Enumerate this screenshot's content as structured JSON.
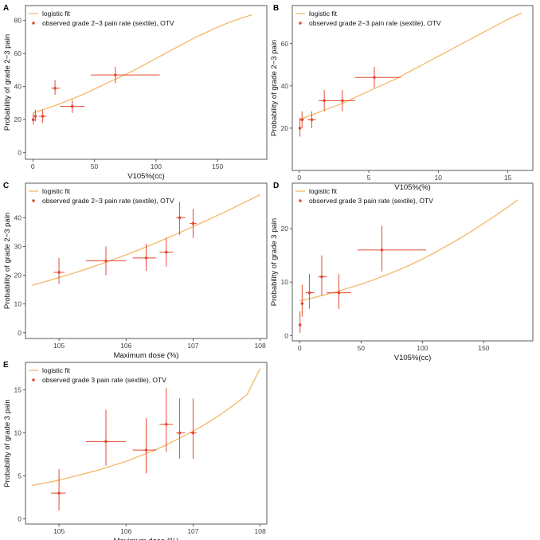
{
  "colors": {
    "fit_line": "#f5b15c",
    "observed": "#e34a33",
    "frame": "#333333",
    "tick_text": "#444444"
  },
  "chart_data": [
    {
      "panel": "A",
      "type": "scatter",
      "xlabel": "V105%(cc)",
      "ylabel": "Probability of grade 2−3 pain",
      "xlim": [
        -6,
        190
      ],
      "ylim": [
        -4,
        89
      ],
      "xticks": [
        0,
        50,
        100,
        150
      ],
      "yticks": [
        0,
        20,
        40,
        60,
        80
      ],
      "legend_position": "top-left",
      "series": [
        {
          "name": "logistic fit",
          "style": "line",
          "x": [
            0,
            10,
            20,
            30,
            40,
            50,
            60,
            70,
            80,
            90,
            100,
            110,
            120,
            130,
            140,
            150,
            160,
            170,
            178
          ],
          "y": [
            24,
            26.5,
            29,
            32,
            35,
            38.5,
            42,
            45.5,
            49,
            53,
            57,
            61,
            65,
            69,
            72.5,
            76,
            79,
            81.5,
            83.5
          ]
        },
        {
          "name": "observed grade 2−3 pain rate (sextile), OTV",
          "style": "point-errorbar",
          "points": [
            {
              "x": 0.3,
              "y": 20,
              "x_lo": 0,
              "x_hi": 0.6,
              "y_lo": 17,
              "y_hi": 24
            },
            {
              "x": 2,
              "y": 22,
              "x_lo": 1,
              "x_hi": 3,
              "y_lo": 19,
              "y_hi": 26
            },
            {
              "x": 8,
              "y": 22,
              "x_lo": 5,
              "x_hi": 11,
              "y_lo": 18,
              "y_hi": 26
            },
            {
              "x": 18,
              "y": 39,
              "x_lo": 15,
              "x_hi": 22,
              "y_lo": 35,
              "y_hi": 44
            },
            {
              "x": 32,
              "y": 28,
              "x_lo": 22,
              "x_hi": 42,
              "y_lo": 24,
              "y_hi": 32
            },
            {
              "x": 67,
              "y": 47,
              "x_lo": 47,
              "x_hi": 103,
              "y_lo": 42,
              "y_hi": 52
            }
          ]
        }
      ]
    },
    {
      "panel": "B",
      "type": "scatter",
      "xlabel": "V105%(%)",
      "ylabel": "Probability of grade 2−3 pain",
      "xlim": [
        -0.5,
        16.8
      ],
      "ylim": [
        0,
        78
      ],
      "xticks": [
        0,
        5,
        10,
        15
      ],
      "yticks": [
        20,
        40,
        60
      ],
      "legend_position": "top-left",
      "series": [
        {
          "name": "logistic fit",
          "style": "line",
          "x": [
            0,
            1,
            2,
            3,
            4,
            5,
            6,
            7,
            8,
            9,
            10,
            11,
            12,
            13,
            14,
            15,
            16
          ],
          "y": [
            24,
            26.5,
            29,
            31.5,
            34.5,
            37.5,
            40.5,
            43.5,
            47,
            50.5,
            54,
            57.5,
            61,
            64.5,
            68,
            71.5,
            74.5
          ]
        },
        {
          "name": "observed grade 2−3 pain rate (sextile), OTV",
          "style": "point-errorbar",
          "points": [
            {
              "x": 0.05,
              "y": 20,
              "x_lo": 0,
              "x_hi": 0.1,
              "y_lo": 16,
              "y_hi": 25
            },
            {
              "x": 0.2,
              "y": 24,
              "x_lo": 0.1,
              "x_hi": 0.35,
              "y_lo": 20,
              "y_hi": 28
            },
            {
              "x": 0.9,
              "y": 24,
              "x_lo": 0.6,
              "x_hi": 1.2,
              "y_lo": 20,
              "y_hi": 28
            },
            {
              "x": 1.8,
              "y": 33,
              "x_lo": 1.4,
              "x_hi": 2.3,
              "y_lo": 28,
              "y_hi": 38
            },
            {
              "x": 3.1,
              "y": 33,
              "x_lo": 2.3,
              "x_hi": 4.0,
              "y_lo": 28,
              "y_hi": 38
            },
            {
              "x": 5.4,
              "y": 44,
              "x_lo": 4.0,
              "x_hi": 7.3,
              "y_lo": 39,
              "y_hi": 49
            }
          ]
        }
      ]
    },
    {
      "panel": "C",
      "type": "scatter",
      "xlabel": "Maximum dose (%)",
      "ylabel": "Probability of grade 2−3 pain",
      "xlim": [
        104.5,
        108.1
      ],
      "ylim": [
        -2,
        52
      ],
      "xticks": [
        105,
        106,
        107,
        108
      ],
      "yticks": [
        0,
        10,
        20,
        30,
        40
      ],
      "legend_position": "top-left",
      "series": [
        {
          "name": "logistic fit",
          "style": "line",
          "x": [
            104.6,
            104.8,
            105.0,
            105.2,
            105.4,
            105.6,
            105.8,
            106.0,
            106.2,
            106.4,
            106.6,
            106.8,
            107.0,
            107.2,
            107.4,
            107.6,
            107.8,
            108.0
          ],
          "y": [
            16.5,
            17.8,
            19.2,
            20.6,
            22.1,
            23.7,
            25.4,
            27.1,
            28.9,
            30.8,
            32.8,
            34.8,
            36.9,
            39.0,
            41.2,
            43.4,
            45.7,
            48.0
          ]
        },
        {
          "name": "observed grade 2−3 pain rate (sextile), OTV",
          "style": "point-errorbar",
          "points": [
            {
              "x": 105.0,
              "y": 21,
              "x_lo": 104.92,
              "x_hi": 105.08,
              "y_lo": 17,
              "y_hi": 26
            },
            {
              "x": 105.7,
              "y": 25,
              "x_lo": 105.4,
              "x_hi": 106.0,
              "y_lo": 20,
              "y_hi": 30
            },
            {
              "x": 106.3,
              "y": 26,
              "x_lo": 106.1,
              "x_hi": 106.45,
              "y_lo": 21.5,
              "y_hi": 31
            },
            {
              "x": 106.6,
              "y": 28,
              "x_lo": 106.5,
              "x_hi": 106.7,
              "y_lo": 23,
              "y_hi": 33
            },
            {
              "x": 106.8,
              "y": 40,
              "x_lo": 106.75,
              "x_hi": 106.88,
              "y_lo": 34,
              "y_hi": 45.5
            },
            {
              "x": 107.0,
              "y": 38,
              "x_lo": 106.95,
              "x_hi": 107.05,
              "y_lo": 33,
              "y_hi": 43
            }
          ]
        }
      ]
    },
    {
      "panel": "D",
      "type": "scatter",
      "xlabel": "V105%(cc)",
      "ylabel": "Probability of grade 3 pain",
      "xlim": [
        -6,
        190
      ],
      "ylim": [
        -1,
        28.5
      ],
      "xticks": [
        0,
        50,
        100,
        150
      ],
      "yticks": [
        0,
        10,
        20
      ],
      "legend_position": "top-left",
      "series": [
        {
          "name": "logistic fit",
          "style": "line",
          "x": [
            0,
            10,
            20,
            30,
            40,
            50,
            60,
            70,
            80,
            90,
            100,
            110,
            120,
            130,
            140,
            150,
            160,
            170,
            178
          ],
          "y": [
            6.5,
            7.0,
            7.6,
            8.2,
            8.9,
            9.6,
            10.4,
            11.3,
            12.2,
            13.2,
            14.3,
            15.5,
            16.8,
            18.1,
            19.5,
            21.0,
            22.5,
            24.1,
            25.4
          ]
        },
        {
          "name": "observed grade 3 pain rate (sextile), OTV",
          "style": "point-errorbar",
          "points": [
            {
              "x": 0.3,
              "y": 2,
              "x_lo": 0,
              "x_hi": 0.6,
              "y_lo": 0.5,
              "y_hi": 4.5
            },
            {
              "x": 2,
              "y": 6,
              "x_lo": 1,
              "x_hi": 3,
              "y_lo": 3.5,
              "y_hi": 9.5
            },
            {
              "x": 8,
              "y": 8,
              "x_lo": 5,
              "x_hi": 12,
              "y_lo": 5,
              "y_hi": 11.5
            },
            {
              "x": 18,
              "y": 11,
              "x_lo": 15,
              "x_hi": 22,
              "y_lo": 7.5,
              "y_hi": 15
            },
            {
              "x": 32,
              "y": 8,
              "x_lo": 22,
              "x_hi": 42,
              "y_lo": 5,
              "y_hi": 11.5
            },
            {
              "x": 67,
              "y": 16,
              "x_lo": 47,
              "x_hi": 103,
              "y_lo": 12,
              "y_hi": 20.5
            }
          ]
        }
      ]
    },
    {
      "panel": "E",
      "type": "scatter",
      "xlabel": "Maximum dose (%)",
      "ylabel": "Probability of grade 3 pain",
      "xlim": [
        104.5,
        108.1
      ],
      "ylim": [
        -0.6,
        18.2
      ],
      "xticks": [
        105,
        106,
        107,
        108
      ],
      "yticks": [
        0,
        5,
        10,
        15
      ],
      "legend_position": "top-left",
      "series": [
        {
          "name": "logistic fit",
          "style": "line",
          "x": [
            104.6,
            104.8,
            105.0,
            105.2,
            105.4,
            105.6,
            105.8,
            106.0,
            106.2,
            106.4,
            106.6,
            106.8,
            107.0,
            107.2,
            107.4,
            107.6,
            107.8,
            108.0
          ],
          "y": [
            3.9,
            4.2,
            4.5,
            4.9,
            5.3,
            5.7,
            6.2,
            6.7,
            7.3,
            7.9,
            8.6,
            9.4,
            10.2,
            11.1,
            12.1,
            13.2,
            14.4,
            17.5
          ]
        },
        {
          "name": "observed grade 3 pain rate (sextile), OTV",
          "style": "point-errorbar",
          "points": [
            {
              "x": 105.0,
              "y": 3,
              "x_lo": 104.88,
              "x_hi": 105.1,
              "y_lo": 1.0,
              "y_hi": 5.8
            },
            {
              "x": 105.7,
              "y": 9,
              "x_lo": 105.4,
              "x_hi": 106.0,
              "y_lo": 6.2,
              "y_hi": 12.7
            },
            {
              "x": 106.3,
              "y": 8,
              "x_lo": 106.1,
              "x_hi": 106.45,
              "y_lo": 5.3,
              "y_hi": 11.7
            },
            {
              "x": 106.6,
              "y": 11,
              "x_lo": 106.5,
              "x_hi": 106.7,
              "y_lo": 7.8,
              "y_hi": 15.2
            },
            {
              "x": 106.8,
              "y": 10,
              "x_lo": 106.75,
              "x_hi": 106.88,
              "y_lo": 7.0,
              "y_hi": 14.0
            },
            {
              "x": 107.0,
              "y": 10,
              "x_lo": 106.95,
              "x_hi": 107.05,
              "y_lo": 7.0,
              "y_hi": 14.0
            }
          ]
        }
      ]
    }
  ]
}
